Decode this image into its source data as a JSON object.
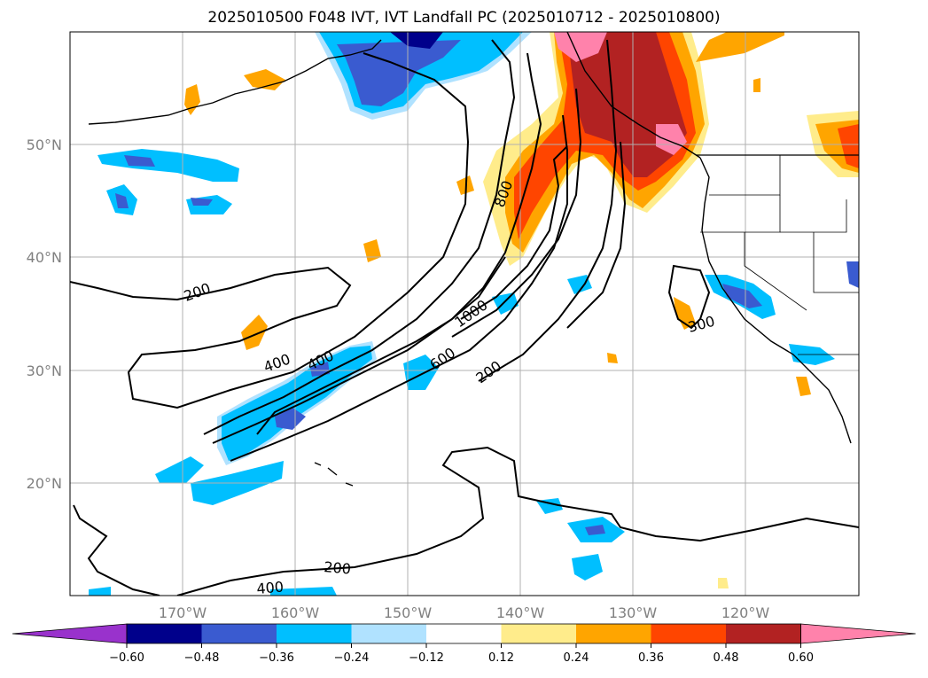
{
  "title": "2025010500 F048 IVT, IVT Landfall PC (2025010712 - 2025010800)",
  "map": {
    "lat_labels": [
      "50°N",
      "40°N",
      "30°N",
      "20°N"
    ],
    "lon_labels": [
      "170°W",
      "160°W",
      "150°W",
      "140°W",
      "130°W",
      "120°W"
    ],
    "contour_labels": [
      "200",
      "400",
      "400",
      "800",
      "1000",
      "600",
      "200",
      "300",
      "200",
      "400"
    ]
  },
  "colorbar": {
    "colors": [
      "#9932cc",
      "#00008b",
      "#3a5bd0",
      "#00bfff",
      "#b0e2ff",
      "#ffffff",
      "#ffec8b",
      "#ffa500",
      "#ff4500",
      "#b22222",
      "#ff82ab"
    ],
    "ticks": [
      "−0.60",
      "−0.48",
      "−0.36",
      "−0.24",
      "−0.12",
      "0.12",
      "0.24",
      "0.36",
      "0.48",
      "0.60"
    ]
  }
}
